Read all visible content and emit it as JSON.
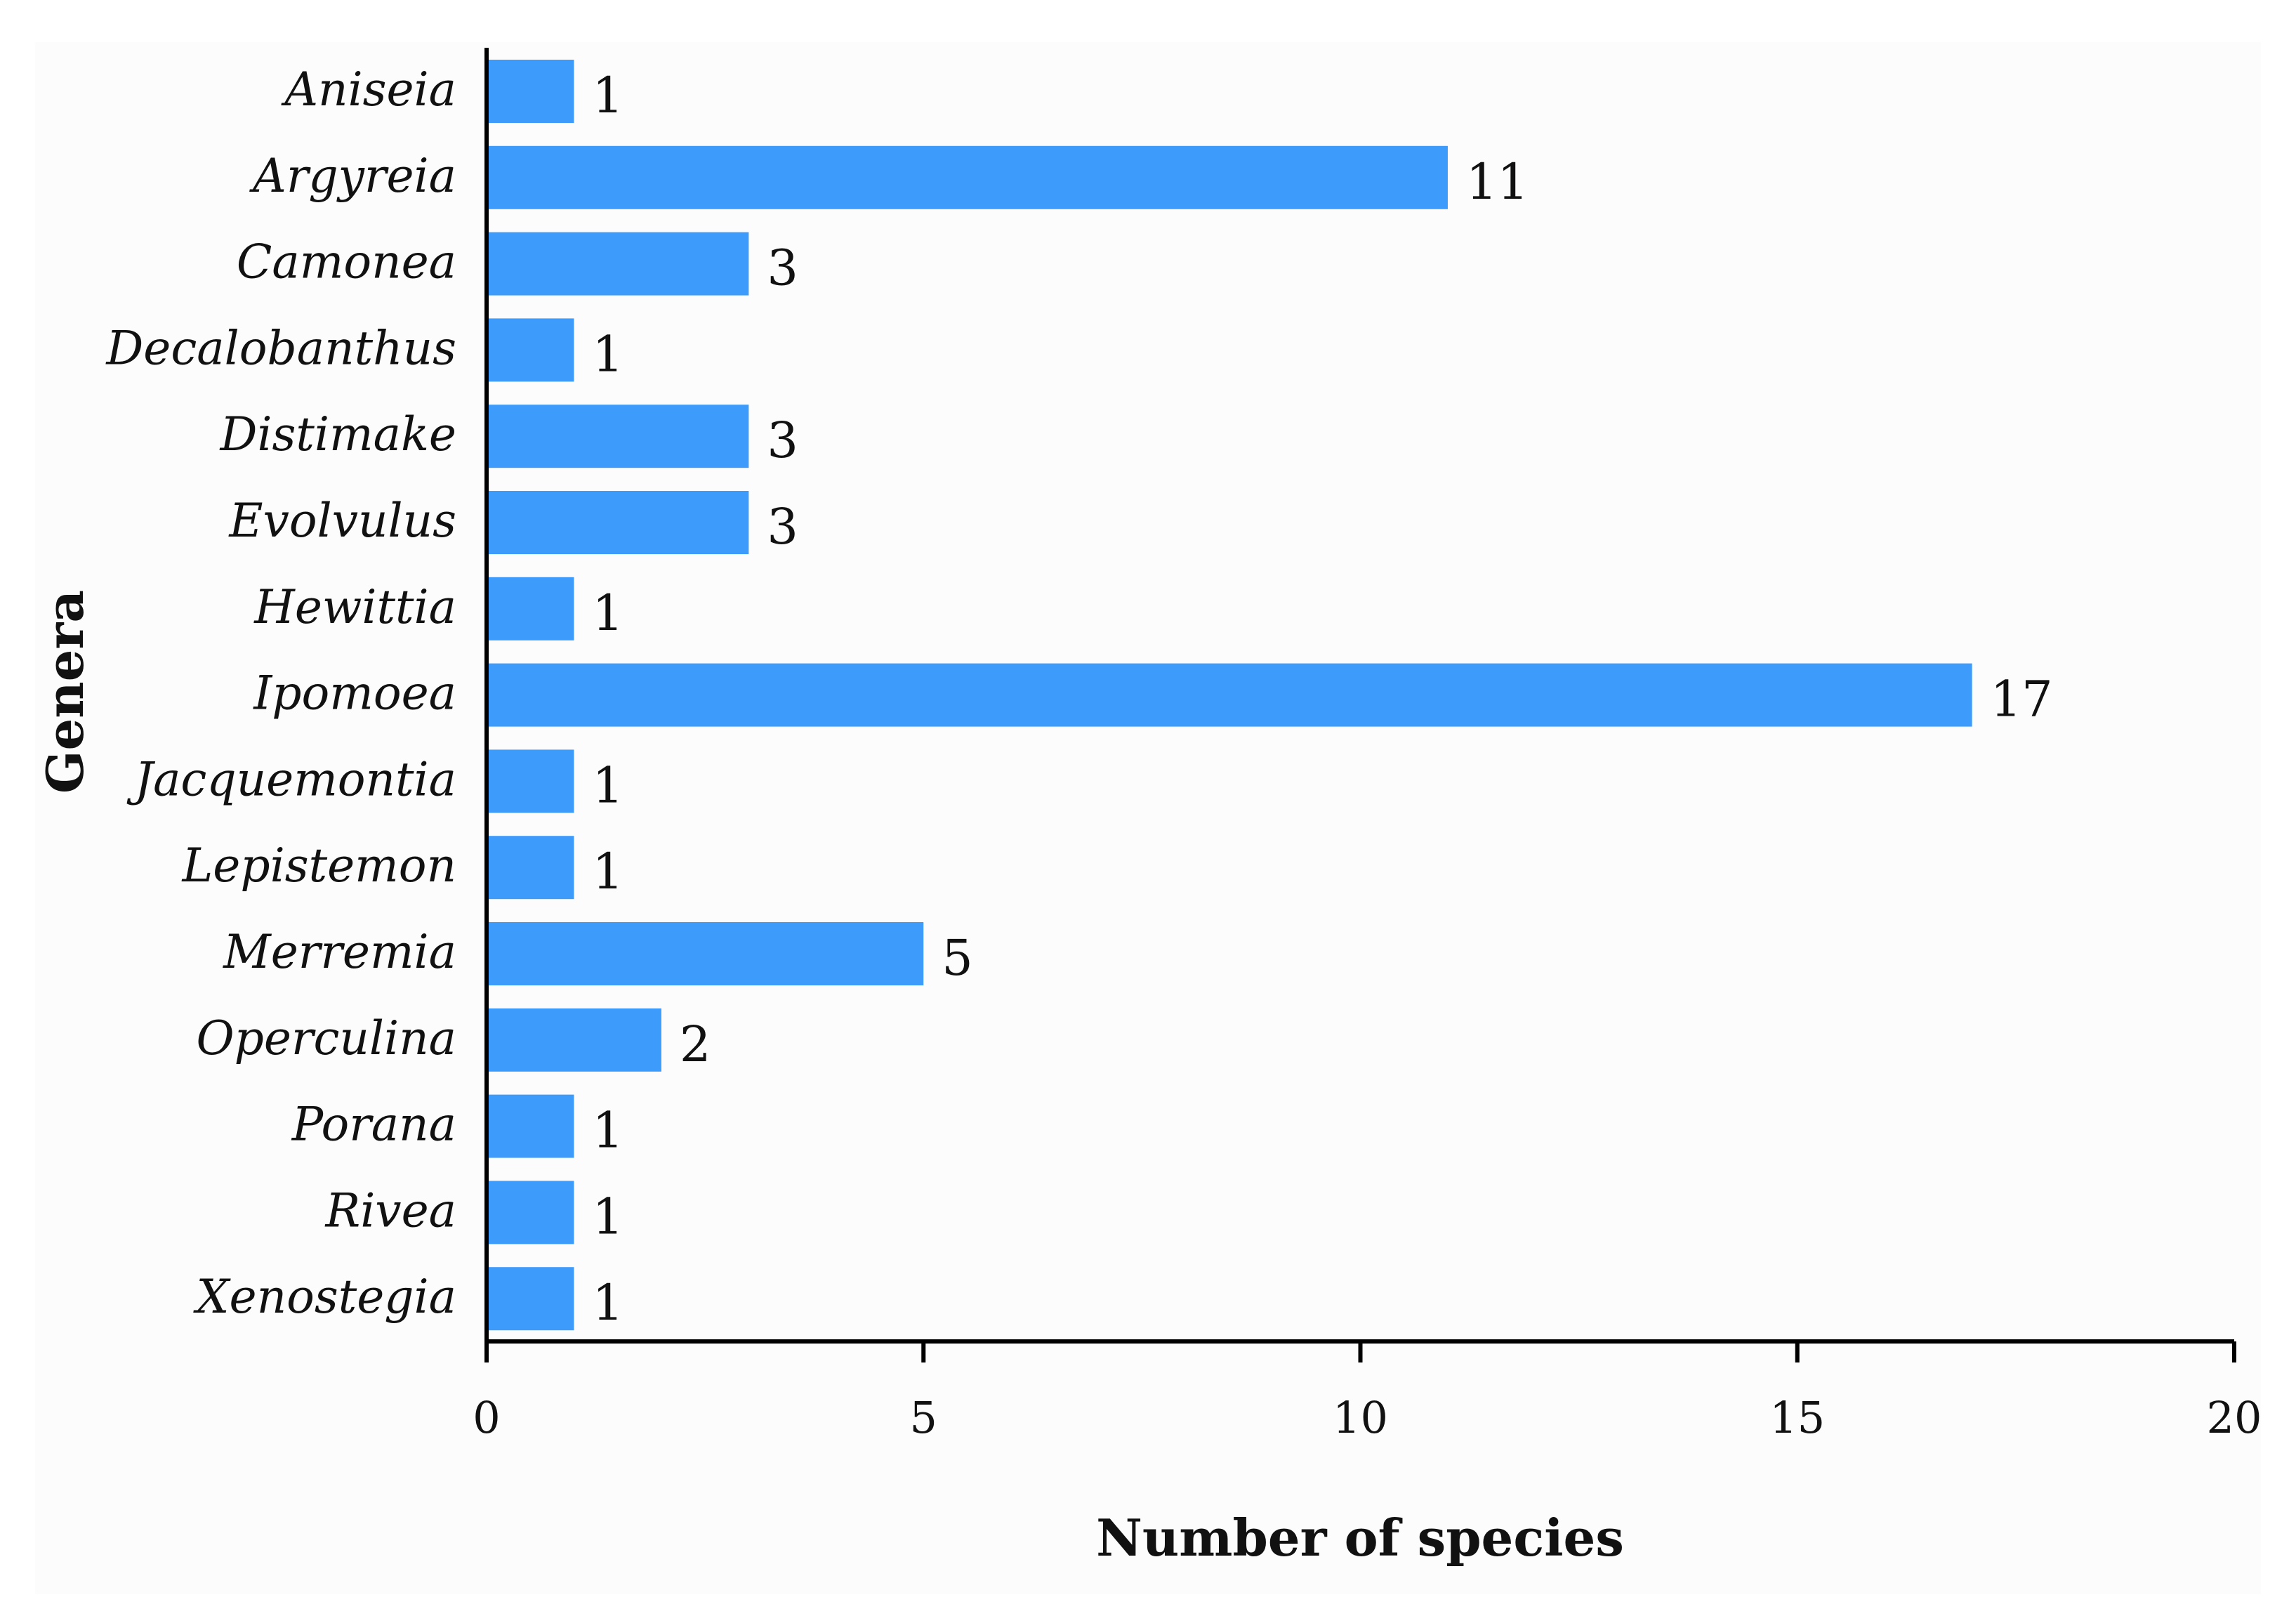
{
  "chart_data": {
    "type": "bar",
    "orientation": "horizontal",
    "categories": [
      "Aniseia",
      "Argyreia",
      "Camonea",
      "Decalobanthus",
      "Distimake",
      "Evolvulus",
      "Hewittia",
      "Ipomoea",
      "Jacquemontia",
      "Lepistemon",
      "Merremia",
      "Operculina",
      "Porana",
      "Rivea",
      "Xenostegia"
    ],
    "values": [
      1,
      11,
      3,
      1,
      3,
      3,
      1,
      17,
      1,
      1,
      5,
      2,
      1,
      1,
      1
    ],
    "xlabel": "Number of species",
    "ylabel": "Genera",
    "xlim": [
      0,
      20
    ],
    "xticks": [
      0,
      5,
      10,
      15,
      20
    ],
    "bar_color": "#3d9bfc",
    "grid": false
  }
}
